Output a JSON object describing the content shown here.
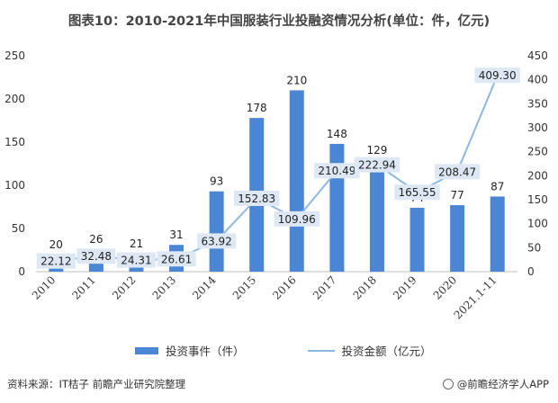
{
  "header": {
    "title": "图表10：2010-2021年中国服装行业投融资情况分析(单位：件，亿元)"
  },
  "chart_data": {
    "type": "bar",
    "categories": [
      "2010",
      "2011",
      "2012",
      "2013",
      "2014",
      "2015",
      "2016",
      "2017",
      "2018",
      "2019",
      "2020",
      "2021.1-11"
    ],
    "series": [
      {
        "name": "投资事件（件）",
        "kind": "bar",
        "axis": "left",
        "values": [
          20,
          26,
          21,
          31,
          93,
          178,
          210,
          148,
          129,
          74,
          77,
          87
        ],
        "labels": [
          "20",
          "26",
          "21",
          "31",
          "93",
          "178",
          "210",
          "148",
          "129",
          "74",
          "77",
          "87"
        ]
      },
      {
        "name": "投资金额（亿元）",
        "kind": "line",
        "axis": "right",
        "values": [
          22.12,
          32.48,
          24.31,
          26.61,
          63.92,
          152.83,
          109.96,
          210.49,
          222.94,
          165.55,
          208.47,
          409.3
        ],
        "labels": [
          "22.12",
          "32.48",
          "24.31",
          "26.61",
          "63.92",
          "152.83",
          "109.96",
          "210.49",
          "222.94",
          "165.55",
          "208.47",
          "409.30"
        ]
      }
    ],
    "ylim_left": [
      0,
      250
    ],
    "yticks_left": [
      "0",
      "50",
      "100",
      "150",
      "200",
      "250"
    ],
    "ylim_right": [
      0,
      450
    ],
    "yticks_right": [
      "0",
      "50",
      "100",
      "150",
      "200",
      "250",
      "300",
      "350",
      "400",
      "450"
    ],
    "grid": false,
    "legend": "bottom",
    "colors": {
      "bar": "#4a86d4",
      "line": "#8db8e4",
      "label_box": "#dde8f4"
    }
  },
  "legend": {
    "bar_label": "投资事件（件）",
    "line_label": "投资金额（亿元）"
  },
  "footer": {
    "source": "资料来源：IT桔子 前瞻产业研究院整理",
    "brand": "@前瞻经济学人APP"
  }
}
